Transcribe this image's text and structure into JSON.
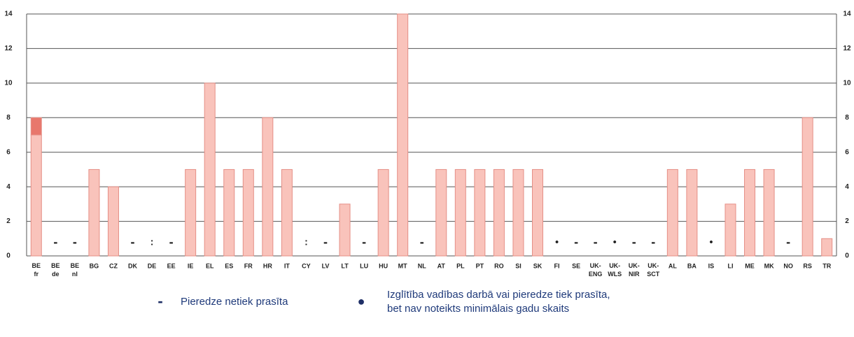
{
  "chart_data": {
    "type": "bar",
    "stacked": true,
    "categories": [
      "BE fr",
      "BE de",
      "BE nl",
      "BG",
      "CZ",
      "DK",
      "DE",
      "EE",
      "IE",
      "EL",
      "ES",
      "FR",
      "HR",
      "IT",
      "CY",
      "LV",
      "LT",
      "LU",
      "HU",
      "MT",
      "NL",
      "AT",
      "PL",
      "PT",
      "RO",
      "SI",
      "SK",
      "FI",
      "SE",
      "UK- ENG",
      "UK- WLS",
      "UK- NIR",
      "UK- SCT",
      "AL",
      "BA",
      "IS",
      "LI",
      "ME",
      "MK",
      "NO",
      "RS",
      "TR"
    ],
    "series": [
      {
        "color": "#f9c3bb",
        "values": [
          7,
          null,
          null,
          5,
          4,
          null,
          null,
          null,
          5,
          10,
          5,
          5,
          8,
          5,
          null,
          null,
          3,
          null,
          5,
          14,
          null,
          5,
          5,
          5,
          5,
          5,
          5,
          null,
          null,
          null,
          null,
          null,
          null,
          5,
          5,
          null,
          3,
          5,
          5,
          null,
          8,
          1
        ]
      },
      {
        "color": "#e8776c",
        "values": [
          1,
          null,
          null,
          null,
          null,
          null,
          null,
          null,
          null,
          null,
          null,
          null,
          null,
          null,
          null,
          null,
          null,
          null,
          null,
          null,
          null,
          null,
          null,
          null,
          null,
          null,
          null,
          null,
          null,
          null,
          null,
          null,
          null,
          null,
          null,
          null,
          null,
          null,
          null,
          null,
          null,
          null
        ]
      }
    ],
    "markers": [
      null,
      "-",
      "-",
      null,
      null,
      "-",
      ":",
      "-",
      null,
      null,
      null,
      null,
      null,
      null,
      ":",
      "-",
      null,
      "-",
      null,
      null,
      "-",
      null,
      null,
      null,
      null,
      null,
      null,
      "•",
      "-",
      "-",
      "•",
      "-",
      "-",
      null,
      null,
      "•",
      null,
      null,
      null,
      "-",
      null,
      null
    ],
    "ylim": [
      0,
      14
    ],
    "yticks": [
      0,
      2,
      4,
      6,
      8,
      10,
      12,
      14
    ],
    "grid": true,
    "legend": [
      {
        "symbol": "-",
        "text": [
          "Pieredze netiek prasīta"
        ]
      },
      {
        "symbol": "●",
        "text": [
          "Izglītība vadības darbā vai pieredze tiek prasīta,",
          "bet nav noteikts minimālais gadu skaits"
        ]
      }
    ]
  }
}
